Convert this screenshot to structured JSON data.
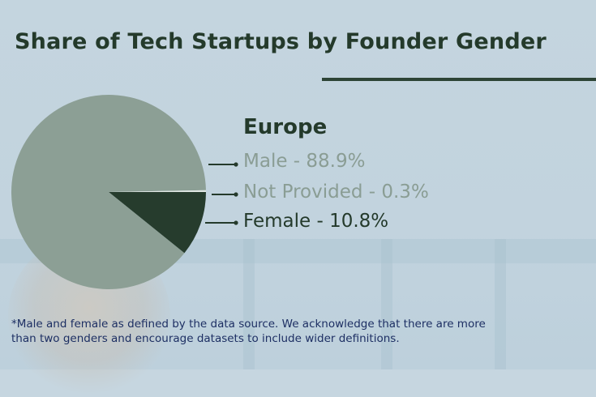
{
  "chart_data": {
    "type": "pie",
    "title": "Share of Tech Startups by Founder Gender",
    "subtitle": "Europe",
    "slices": [
      {
        "label": "Male",
        "value": 88.9,
        "unit": "%",
        "color": "#8c9f95"
      },
      {
        "label": "Not Provided",
        "value": 0.3,
        "unit": "%",
        "color": "#dfe6e2"
      },
      {
        "label": "Female",
        "value": 10.8,
        "unit": "%",
        "color": "#263c2d"
      }
    ],
    "legend_text": [
      "Male - 88.9%",
      "Not Provided - 0.3%",
      "Female - 10.8%"
    ],
    "legend_colors": [
      "#8a9d94",
      "#8a9d94",
      "#243a2b"
    ],
    "legend_placement": "right",
    "footnote": "*Male and female as defined by the data source. We acknowledge that there are more than two genders and encourage datasets to include wider definitions."
  }
}
